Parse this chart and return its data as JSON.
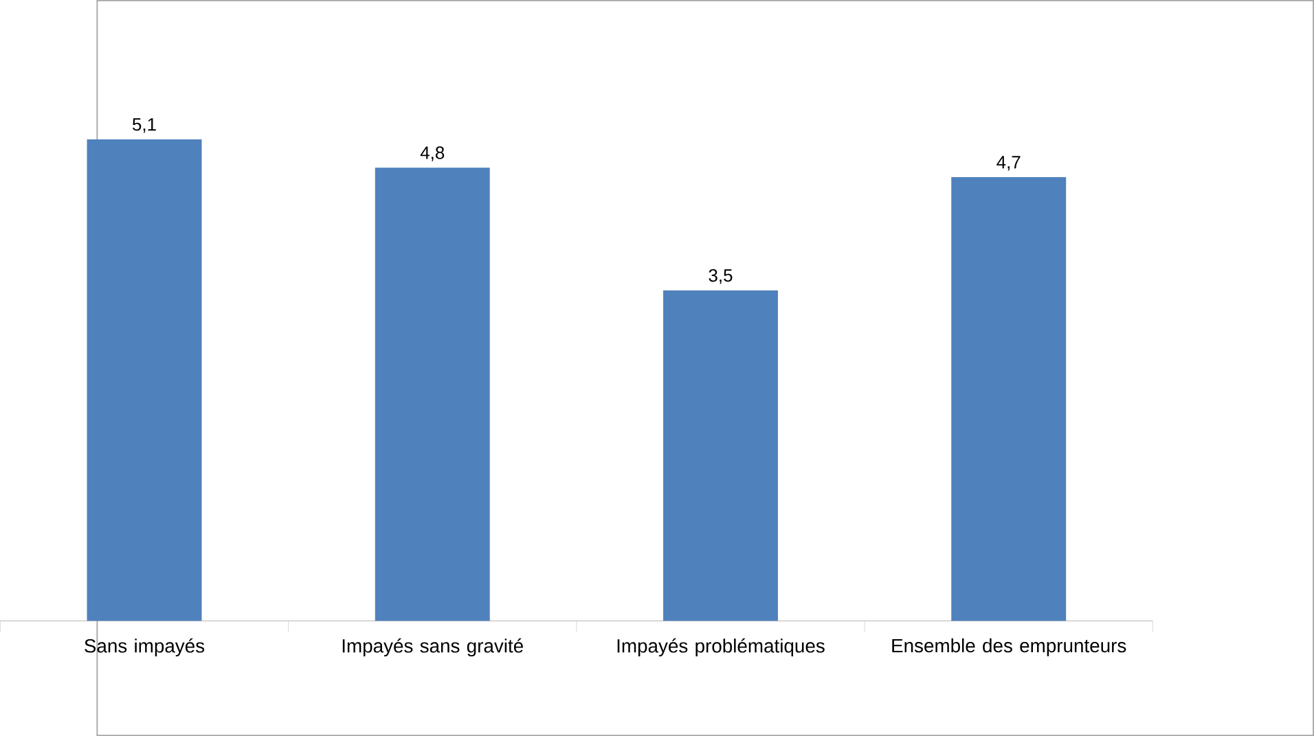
{
  "chart_data": {
    "type": "bar",
    "categories": [
      "Sans impayés",
      "Impayés sans gravité",
      "Impayés problématiques",
      "Ensemble des emprunteurs"
    ],
    "values": [
      5.1,
      4.8,
      3.5,
      4.7
    ],
    "value_labels": [
      "5,1",
      "4,8",
      "3,5",
      "4,7"
    ],
    "color": "#4f81bd"
  }
}
